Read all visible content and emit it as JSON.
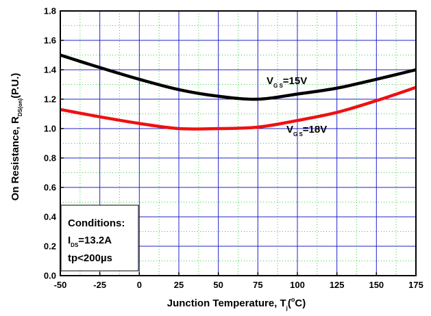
{
  "chart_data": {
    "type": "line",
    "xlabel": {
      "main": "Junction Temperature, T",
      "sub": "j",
      "sup": "o",
      "unit": "C)"
    },
    "ylabel": {
      "main": "On Resistance, R",
      "sub": "DS(on)",
      "unit": "(P.U.)"
    },
    "xlim": [
      -50,
      175
    ],
    "ylim": [
      0.0,
      1.8
    ],
    "xticks": [
      "-50",
      "-25",
      "0",
      "25",
      "50",
      "75",
      "100",
      "125",
      "150",
      "175"
    ],
    "yticks": [
      "0.0",
      "0.2",
      "0.4",
      "0.6",
      "0.8",
      "1.0",
      "1.2",
      "1.4",
      "1.6",
      "1.8"
    ],
    "grid": true,
    "colors": {
      "grid_major": "#2020c8",
      "grid_minor": "#33cc33",
      "axis": "#000000"
    },
    "series": [
      {
        "label_main": "V",
        "label_sub": "G S",
        "label_value": "=15V",
        "color": "#000000",
        "x": [
          -50,
          -25,
          0,
          25,
          50,
          75,
          100,
          125,
          150,
          175
        ],
        "y": [
          1.5,
          1.415,
          1.335,
          1.265,
          1.22,
          1.2,
          1.235,
          1.275,
          1.335,
          1.4
        ]
      },
      {
        "label_main": "V",
        "label_sub": "G S",
        "label_value": "=18V",
        "color": "#ee1111",
        "x": [
          -50,
          -25,
          0,
          25,
          50,
          75,
          100,
          125,
          150,
          175
        ],
        "y": [
          1.13,
          1.08,
          1.035,
          1.0,
          1.0,
          1.01,
          1.055,
          1.11,
          1.19,
          1.28
        ]
      }
    ],
    "conditions": {
      "title": "Conditions:",
      "current_main": "I",
      "current_sub": "DS",
      "current_value": "=13.2A",
      "pulse": "tp<200µs"
    }
  }
}
